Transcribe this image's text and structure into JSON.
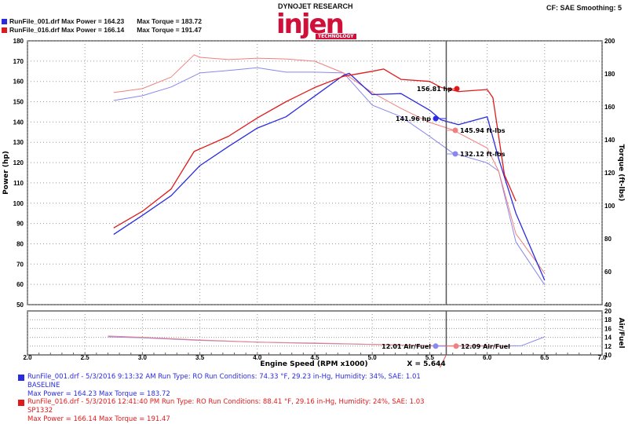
{
  "header": {
    "run1_summary": "RunFile_001.drf Max Power = 164.23",
    "run1_torque": "Max Torque = 183.72",
    "run2_summary": "RunFile_016.drf Max Power = 166.14",
    "run2_torque": "Max Torque = 191.47",
    "company": "DYNOJET RESEARCH",
    "logo_text": "injen",
    "logo_sub": "TECHNOLOGY",
    "settings": "CF: SAE  Smoothing: 5"
  },
  "colors": {
    "run1": "#2a2ae0",
    "run1_light": "#8888ee",
    "run2": "#e01a1a",
    "run2_light": "#f08080"
  },
  "cursor": {
    "label": "X = 5.644",
    "x": 5.644
  },
  "markers": {
    "run2_power": "156.81 hp",
    "run1_power": "141.96 hp",
    "run2_torque": "145.94 ft-lbs",
    "run1_torque": "132.12 ft-lbs",
    "run1_afr": "12.01 Air/Fuel",
    "run2_afr": "12.09 Air/Fuel"
  },
  "legend": [
    {
      "line1": "RunFile_001.drf - 5/3/2016 9:13:32 AM  Run Type: RO  Run Conditions: 74.33 °F, 29.23 in-Hg,  Humidity:  34%,  SAE: 1.01",
      "line2": "BASELINE",
      "line3": "Max Power = 164.23  Max Torque = 183.72"
    },
    {
      "line1": "RunFile_016.drf - 5/3/2016 12:41:40 PM  Run Type: RO  Run Conditions: 88.41 °F, 29.16 in-Hg,  Humidity:  24%,  SAE: 1.03",
      "line2": "SP1332",
      "line3": "Max Power = 166.14  Max Torque = 191.47"
    }
  ],
  "chart_data": {
    "type": "line",
    "xlabel": "Engine Speed (RPM x1000)",
    "ylabel_left": "Power (hp)",
    "ylabel_right": "Torque (ft-lbs)",
    "ylabel_afr": "Air/Fuel",
    "xlim": [
      2.0,
      7.0
    ],
    "ylim_power": [
      50,
      180
    ],
    "ylim_torque": [
      40,
      200
    ],
    "ylim_afr": [
      10,
      20
    ],
    "x_ticks": [
      "2.0",
      "2.5",
      "3.0",
      "3.5",
      "4.0",
      "4.5",
      "5.0",
      "5.5",
      "6.0",
      "6.5",
      "7.0"
    ],
    "power_ticks": [
      "50",
      "60",
      "70",
      "80",
      "90",
      "100",
      "110",
      "120",
      "130",
      "140",
      "150",
      "160",
      "170",
      "180"
    ],
    "torque_ticks": [
      "40",
      "60",
      "80",
      "100",
      "120",
      "140",
      "160",
      "180",
      "200"
    ],
    "afr_ticks": [
      "10",
      "12",
      "14",
      "16",
      "18",
      "20"
    ],
    "grid": true,
    "series": [
      {
        "name": "RunFile_001.drf",
        "kind": "power",
        "x": [
          2.75,
          3.0,
          3.25,
          3.5,
          3.75,
          4.0,
          4.25,
          4.5,
          4.75,
          4.8,
          5.0,
          5.25,
          5.5,
          5.6,
          5.75,
          6.0,
          6.1,
          6.25,
          6.5
        ],
        "y": [
          84.6,
          94,
          103.7,
          118.5,
          128,
          137,
          142.6,
          152.8,
          163,
          164,
          153.5,
          154,
          145.8,
          141,
          138.7,
          142.6,
          122,
          95,
          62
        ]
      },
      {
        "name": "RunFile_001.drf",
        "kind": "torque",
        "x": [
          2.75,
          3.0,
          3.25,
          3.5,
          3.75,
          4.0,
          4.25,
          4.5,
          4.75,
          5.0,
          5.25,
          5.5,
          5.7,
          6.0,
          6.1,
          6.25,
          6.5
        ],
        "y": [
          163.8,
          166.7,
          172,
          180.5,
          182,
          183.7,
          181,
          181,
          180.5,
          161,
          154,
          142,
          132,
          126,
          121,
          78,
          52
        ]
      },
      {
        "name": "RunFile_016.drf",
        "kind": "power",
        "x": [
          2.75,
          3.0,
          3.25,
          3.45,
          3.75,
          4.0,
          4.25,
          4.5,
          4.75,
          5.0,
          5.1,
          5.25,
          5.5,
          5.6,
          5.75,
          6.0,
          6.05,
          6.15,
          6.25
        ],
        "y": [
          87.8,
          96,
          107,
          125.5,
          133,
          142,
          150,
          157,
          162.5,
          165,
          166.1,
          161,
          160,
          157,
          155,
          156,
          152,
          114,
          101
        ]
      },
      {
        "name": "RunFile_016.drf",
        "kind": "torque",
        "x": [
          2.75,
          3.0,
          3.25,
          3.45,
          3.5,
          3.75,
          4.0,
          4.25,
          4.5,
          4.75,
          5.0,
          5.25,
          5.5,
          5.7,
          6.0,
          6.1,
          6.25,
          6.5
        ],
        "y": [
          168.6,
          171,
          178,
          191.5,
          190,
          188.6,
          189.5,
          189,
          187.6,
          180.5,
          168.6,
          159,
          150.5,
          146,
          135,
          121,
          83,
          59
        ]
      },
      {
        "name": "RunFile_001.drf",
        "kind": "afr",
        "x": [
          2.7,
          3.0,
          3.5,
          4.0,
          4.5,
          5.0,
          5.5,
          6.0,
          6.3,
          6.5
        ],
        "y": [
          14.1,
          13.9,
          13.3,
          12.9,
          12.6,
          12.4,
          12.05,
          12.0,
          12.1,
          14.1
        ]
      },
      {
        "name": "RunFile_016.drf",
        "kind": "afr",
        "x": [
          2.7,
          3.0,
          3.5,
          4.0,
          4.5,
          5.0,
          5.5,
          6.0,
          6.2
        ],
        "y": [
          14.3,
          14.0,
          13.4,
          12.9,
          12.7,
          12.4,
          12.1,
          12.1,
          12.0
        ]
      }
    ]
  }
}
